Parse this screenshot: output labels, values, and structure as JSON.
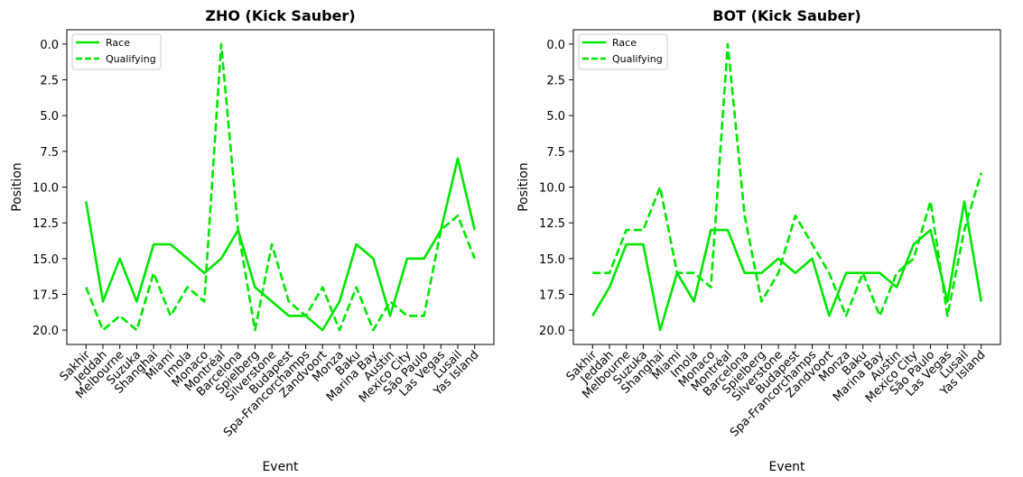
{
  "chart_data": [
    {
      "type": "line",
      "title": "ZHO (Kick Sauber)",
      "xlabel": "Event",
      "ylabel": "Position",
      "categories": [
        "Sakhir",
        "Jeddah",
        "Melbourne",
        "Suzuka",
        "Shanghai",
        "Miami",
        "Imola",
        "Monaco",
        "Montréal",
        "Barcelona",
        "Spielberg",
        "Silverstone",
        "Budapest",
        "Spa-Francorchamps",
        "Zandvoort",
        "Monza",
        "Baku",
        "Marina Bay",
        "Austin",
        "Mexico City",
        "São Paulo",
        "Las Vegas",
        "Lusail",
        "Yas Island"
      ],
      "ylim": [
        21,
        -1
      ],
      "yticks": [
        0.0,
        2.5,
        5.0,
        7.5,
        10.0,
        12.5,
        15.0,
        17.5,
        20.0
      ],
      "ytick_labels": [
        "0.0",
        "2.5",
        "5.0",
        "7.5",
        "10.0",
        "12.5",
        "15.0",
        "17.5",
        "20.0"
      ],
      "legend_position": "top-left",
      "grid": false,
      "series": [
        {
          "name": "Race",
          "style": "solid",
          "color": "#00e600",
          "values": [
            11,
            18,
            15,
            18,
            14,
            14,
            15,
            16,
            15,
            13,
            17,
            18,
            19,
            19,
            20,
            18,
            14,
            15,
            19,
            15,
            15,
            13,
            8,
            13
          ]
        },
        {
          "name": "Qualifying",
          "style": "dashed",
          "color": "#00e600",
          "values": [
            17,
            20,
            19,
            20,
            16,
            19,
            17,
            18,
            0,
            13,
            20,
            14,
            18,
            19,
            17,
            20,
            17,
            20,
            18,
            19,
            19,
            13,
            12,
            15
          ]
        }
      ]
    },
    {
      "type": "line",
      "title": "BOT (Kick Sauber)",
      "xlabel": "Event",
      "ylabel": "Position",
      "categories": [
        "Sakhir",
        "Jeddah",
        "Melbourne",
        "Suzuka",
        "Shanghai",
        "Miami",
        "Imola",
        "Monaco",
        "Montréal",
        "Barcelona",
        "Spielberg",
        "Silverstone",
        "Budapest",
        "Spa-Francorchamps",
        "Zandvoort",
        "Monza",
        "Baku",
        "Marina Bay",
        "Austin",
        "Mexico City",
        "São Paulo",
        "Las Vegas",
        "Lusail",
        "Yas Island"
      ],
      "ylim": [
        21,
        -1
      ],
      "yticks": [
        0.0,
        2.5,
        5.0,
        7.5,
        10.0,
        12.5,
        15.0,
        17.5,
        20.0
      ],
      "ytick_labels": [
        "0.0",
        "2.5",
        "5.0",
        "7.5",
        "10.0",
        "12.5",
        "15.0",
        "17.5",
        "20.0"
      ],
      "legend_position": "top-left",
      "grid": false,
      "series": [
        {
          "name": "Race",
          "style": "solid",
          "color": "#00e600",
          "values": [
            19,
            17,
            14,
            14,
            20,
            16,
            18,
            13,
            13,
            16,
            16,
            15,
            16,
            15,
            19,
            16,
            16,
            16,
            17,
            14,
            13,
            18,
            11,
            18
          ]
        },
        {
          "name": "Qualifying",
          "style": "dashed",
          "color": "#00e600",
          "values": [
            16,
            16,
            13,
            13,
            10,
            16,
            16,
            17,
            0,
            12,
            18,
            16,
            12,
            14,
            16,
            19,
            16,
            19,
            16,
            15,
            11,
            19,
            13,
            9
          ]
        }
      ]
    }
  ]
}
